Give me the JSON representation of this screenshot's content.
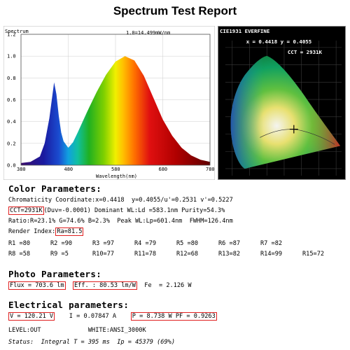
{
  "title": "Spectrum Test Report",
  "spectrum": {
    "ylabel": "Spectrum",
    "annotation": "1.0=14.499mW/nm",
    "xlabel": "Wavelength(nm)",
    "xticks": [
      "380",
      "480",
      "580",
      "680",
      "780"
    ],
    "yticks": [
      "0.0",
      "0.2",
      "0.4",
      "0.6",
      "0.8",
      "1.0",
      "1.2"
    ]
  },
  "chart_data": {
    "type": "area",
    "x": [
      380,
      400,
      420,
      430,
      440,
      450,
      455,
      460,
      465,
      470,
      480,
      490,
      500,
      520,
      540,
      560,
      580,
      600,
      620,
      640,
      660,
      680,
      700,
      720,
      740,
      760,
      780
    ],
    "values": [
      0.02,
      0.03,
      0.08,
      0.2,
      0.43,
      0.76,
      0.65,
      0.45,
      0.3,
      0.22,
      0.16,
      0.21,
      0.3,
      0.49,
      0.67,
      0.83,
      0.95,
      1.0,
      0.96,
      0.82,
      0.62,
      0.42,
      0.27,
      0.16,
      0.09,
      0.05,
      0.03
    ],
    "xlabel": "Wavelength(nm)",
    "ylabel": "Spectrum",
    "xlim": [
      380,
      780
    ],
    "ylim": [
      0,
      1.2
    ]
  },
  "cie": {
    "title": "CIE1931 EVERFINE",
    "xy": "x = 0.4418  y = 0.4055",
    "cct": "CCT = 2931K"
  },
  "color": {
    "heading": "Color Parameters:",
    "chromaticity": "Chromaticity Coordinate:x=0.4418  y=0.4055/u'=0.2531 v'=0.5227",
    "cct_box": "CCT=2931K",
    "cct_rest": "(Duv=-0.0001) Dominant WL:Ld =583.1nm Purity=54.3%",
    "ratio": "Ratio:R=23.1% G=74.6% B=2.3%  Peak WL:Lp=601.4nm  FWHM=126.4nm",
    "render_label": "Render Index:",
    "render_box": "Ra=81.5",
    "r_row1": [
      "R1 =80",
      "R2 =90",
      "R3 =97",
      "R4 =79",
      "R5 =80",
      "R6 =87",
      "R7 =82"
    ],
    "r_row2": [
      "R8 =58",
      "R9 =5",
      "R10=77",
      "R11=78",
      "R12=68",
      "R13=82",
      "R14=99",
      "R15=72"
    ]
  },
  "photo": {
    "heading": "Photo Parameters:",
    "flux": "Flux = 703.6 lm",
    "eff": "Eff. : 80.53 lm/W",
    "fe": "Fe  = 2.126 W"
  },
  "electrical": {
    "heading": "Electrical parameters:",
    "v": "V = 120.21 V",
    "i": "I = 0.07847 A",
    "p": "P = 8.738 W PF = 0.9263",
    "level": "LEVEL:OUT",
    "white": "WHITE:ANSI_3000K",
    "status": "Status:  Integral T = 395 ms  Ip = 45379 (69%)"
  }
}
